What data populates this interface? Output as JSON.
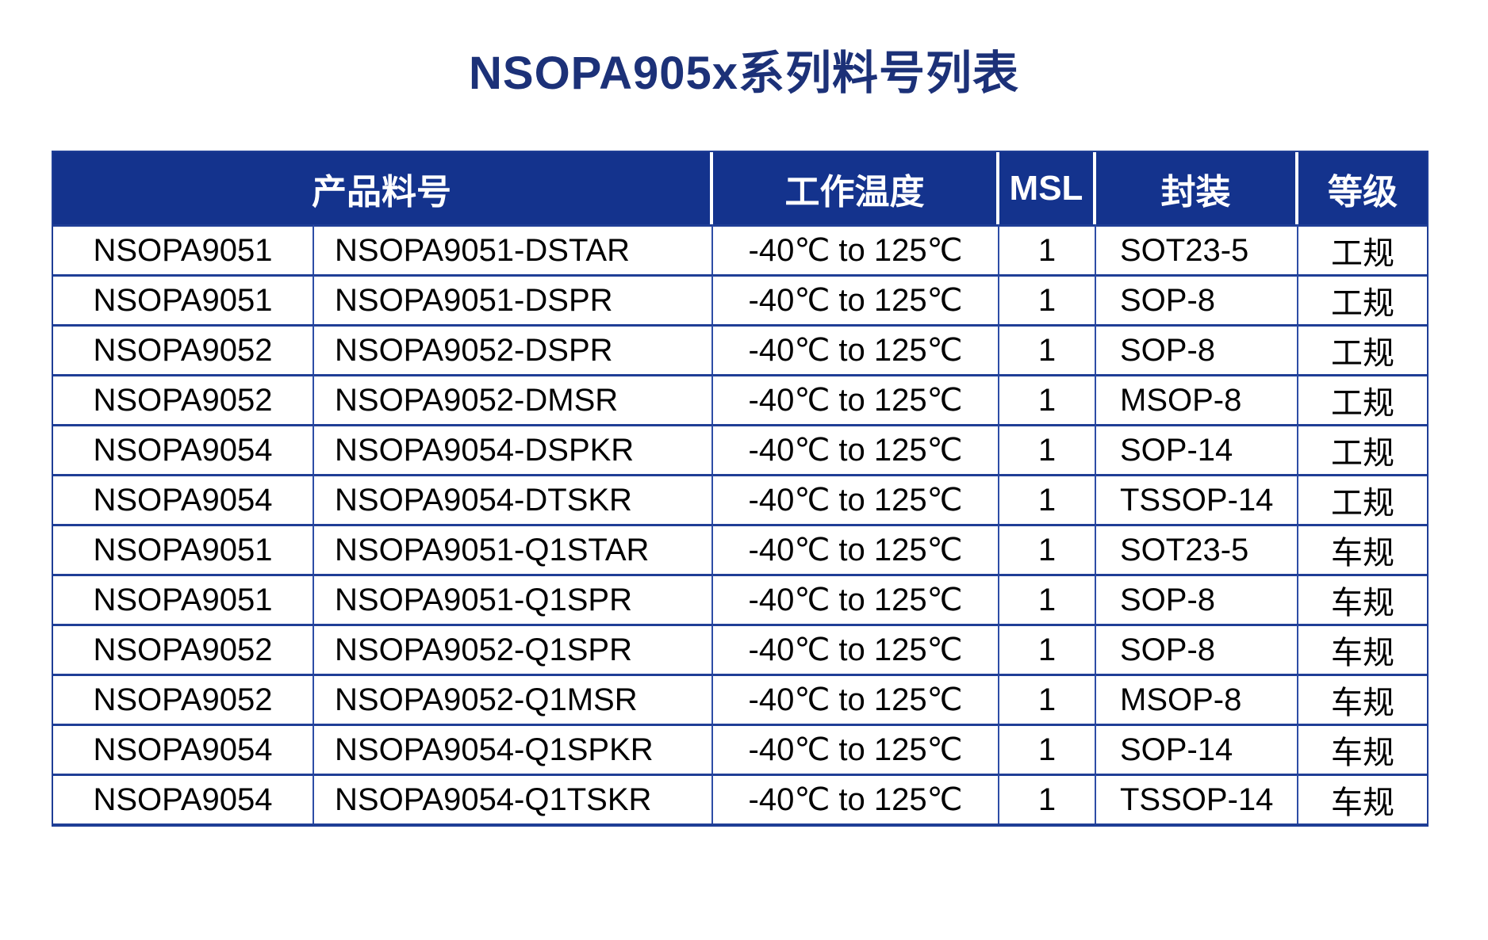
{
  "page": {
    "title": "NSOPA905x系列料号列表"
  },
  "colors": {
    "header_bg": "#14338D",
    "title_text": "#1C3178",
    "grid_line": "#1F3E96",
    "grid_line_vertical": "#2E4DA6",
    "header_text": "#FFFFFF",
    "body_text": "#000000",
    "page_bg": "#FFFFFF"
  },
  "table": {
    "headers": {
      "product_part": "产品料号",
      "temp": "工作温度",
      "msl": "MSL",
      "package": "封装",
      "grade": "等级"
    },
    "rows": [
      {
        "series": "NSOPA9051",
        "part_number": "NSOPA9051-DSTAR",
        "temp_range": "-40℃ to 125℃",
        "msl": "1",
        "package": "SOT23-5",
        "grade": "工规"
      },
      {
        "series": "NSOPA9051",
        "part_number": "NSOPA9051-DSPR",
        "temp_range": "-40℃ to 125℃",
        "msl": "1",
        "package": "SOP-8",
        "grade": "工规"
      },
      {
        "series": "NSOPA9052",
        "part_number": "NSOPA9052-DSPR",
        "temp_range": "-40℃ to 125℃",
        "msl": "1",
        "package": "SOP-8",
        "grade": "工规"
      },
      {
        "series": "NSOPA9052",
        "part_number": "NSOPA9052-DMSR",
        "temp_range": "-40℃ to 125℃",
        "msl": "1",
        "package": "MSOP-8",
        "grade": "工规"
      },
      {
        "series": "NSOPA9054",
        "part_number": "NSOPA9054-DSPKR",
        "temp_range": "-40℃ to 125℃",
        "msl": "1",
        "package": "SOP-14",
        "grade": "工规"
      },
      {
        "series": "NSOPA9054",
        "part_number": "NSOPA9054-DTSKR",
        "temp_range": "-40℃ to 125℃",
        "msl": "1",
        "package": "TSSOP-14",
        "grade": "工规"
      },
      {
        "series": "NSOPA9051",
        "part_number": "NSOPA9051-Q1STAR",
        "temp_range": "-40℃ to 125℃",
        "msl": "1",
        "package": "SOT23-5",
        "grade": "车规"
      },
      {
        "series": "NSOPA9051",
        "part_number": "NSOPA9051-Q1SPR",
        "temp_range": "-40℃ to 125℃",
        "msl": "1",
        "package": "SOP-8",
        "grade": "车规"
      },
      {
        "series": "NSOPA9052",
        "part_number": "NSOPA9052-Q1SPR",
        "temp_range": "-40℃ to 125℃",
        "msl": "1",
        "package": "SOP-8",
        "grade": "车规"
      },
      {
        "series": "NSOPA9052",
        "part_number": "NSOPA9052-Q1MSR",
        "temp_range": "-40℃ to 125℃",
        "msl": "1",
        "package": "MSOP-8",
        "grade": "车规"
      },
      {
        "series": "NSOPA9054",
        "part_number": "NSOPA9054-Q1SPKR",
        "temp_range": "-40℃ to 125℃",
        "msl": "1",
        "package": "SOP-14",
        "grade": "车规"
      },
      {
        "series": "NSOPA9054",
        "part_number": "NSOPA9054-Q1TSKR",
        "temp_range": "-40℃ to 125℃",
        "msl": "1",
        "package": "TSSOP-14",
        "grade": "车规"
      }
    ]
  }
}
